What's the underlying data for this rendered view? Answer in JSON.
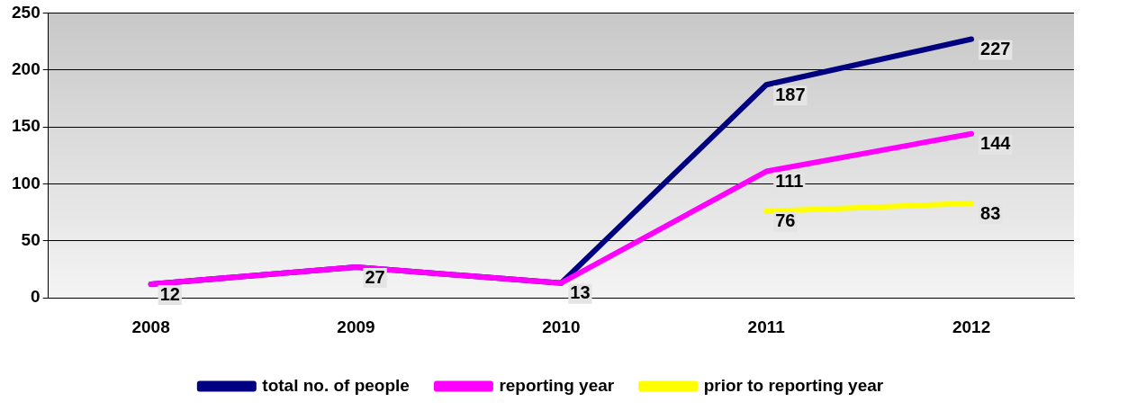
{
  "chart_data": {
    "type": "line",
    "categories": [
      "2008",
      "2009",
      "2010",
      "2011",
      "2012"
    ],
    "series": [
      {
        "name": "total no. of people",
        "color": "#000080",
        "values": [
          12,
          27,
          13,
          187,
          227
        ],
        "value_labels": [
          null,
          null,
          null,
          "187",
          "227"
        ]
      },
      {
        "name": "reporting year",
        "color": "#ff00ff",
        "values": [
          12,
          27,
          13,
          111,
          144
        ],
        "value_labels": [
          "12",
          "27",
          "13",
          "111",
          "144"
        ]
      },
      {
        "name": "prior to reporting year",
        "color": "#ffff00",
        "values": [
          null,
          null,
          null,
          76,
          83
        ],
        "value_labels": [
          null,
          null,
          null,
          "76",
          "83"
        ]
      }
    ],
    "ylim": [
      0,
      250
    ],
    "yticks": [
      0,
      50,
      100,
      150,
      200,
      250
    ],
    "grid": "y",
    "legend": "bottom",
    "marker": "none",
    "line_style": "solid"
  }
}
